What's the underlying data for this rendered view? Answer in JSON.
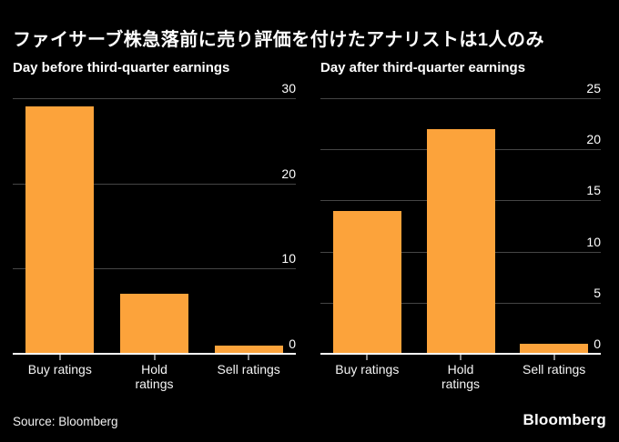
{
  "header": {
    "title": "ファイサーブ株急落前に売り評価を付けたアナリストは1人のみ"
  },
  "footer": {
    "source": "Source: Bloomberg",
    "brand": "Bloomberg"
  },
  "colors": {
    "background": "#000000",
    "bar": "#FCA33B",
    "gridline": "#454545",
    "axis_line": "#FFFFFF",
    "tick": "#8A8A8A",
    "text": "#FFFFFF"
  },
  "chart_data": [
    {
      "type": "bar",
      "title": "Day before third-quarter earnings",
      "categories": [
        "Buy ratings",
        "Hold\nratings",
        "Sell ratings"
      ],
      "values": [
        29,
        7,
        1
      ],
      "xlabel": "",
      "ylabel": "",
      "ylim": [
        0,
        30
      ],
      "yticks": [
        0,
        10,
        20,
        30
      ],
      "ytick_side": "right",
      "grid": true,
      "legend": "none"
    },
    {
      "type": "bar",
      "title": "Day after third-quarter earnings",
      "categories": [
        "Buy ratings",
        "Hold\nratings",
        "Sell ratings"
      ],
      "values": [
        14,
        22,
        1
      ],
      "xlabel": "",
      "ylabel": "",
      "ylim": [
        0,
        25
      ],
      "yticks": [
        0,
        5,
        10,
        15,
        20,
        25
      ],
      "ytick_side": "right",
      "grid": true,
      "legend": "none"
    }
  ]
}
